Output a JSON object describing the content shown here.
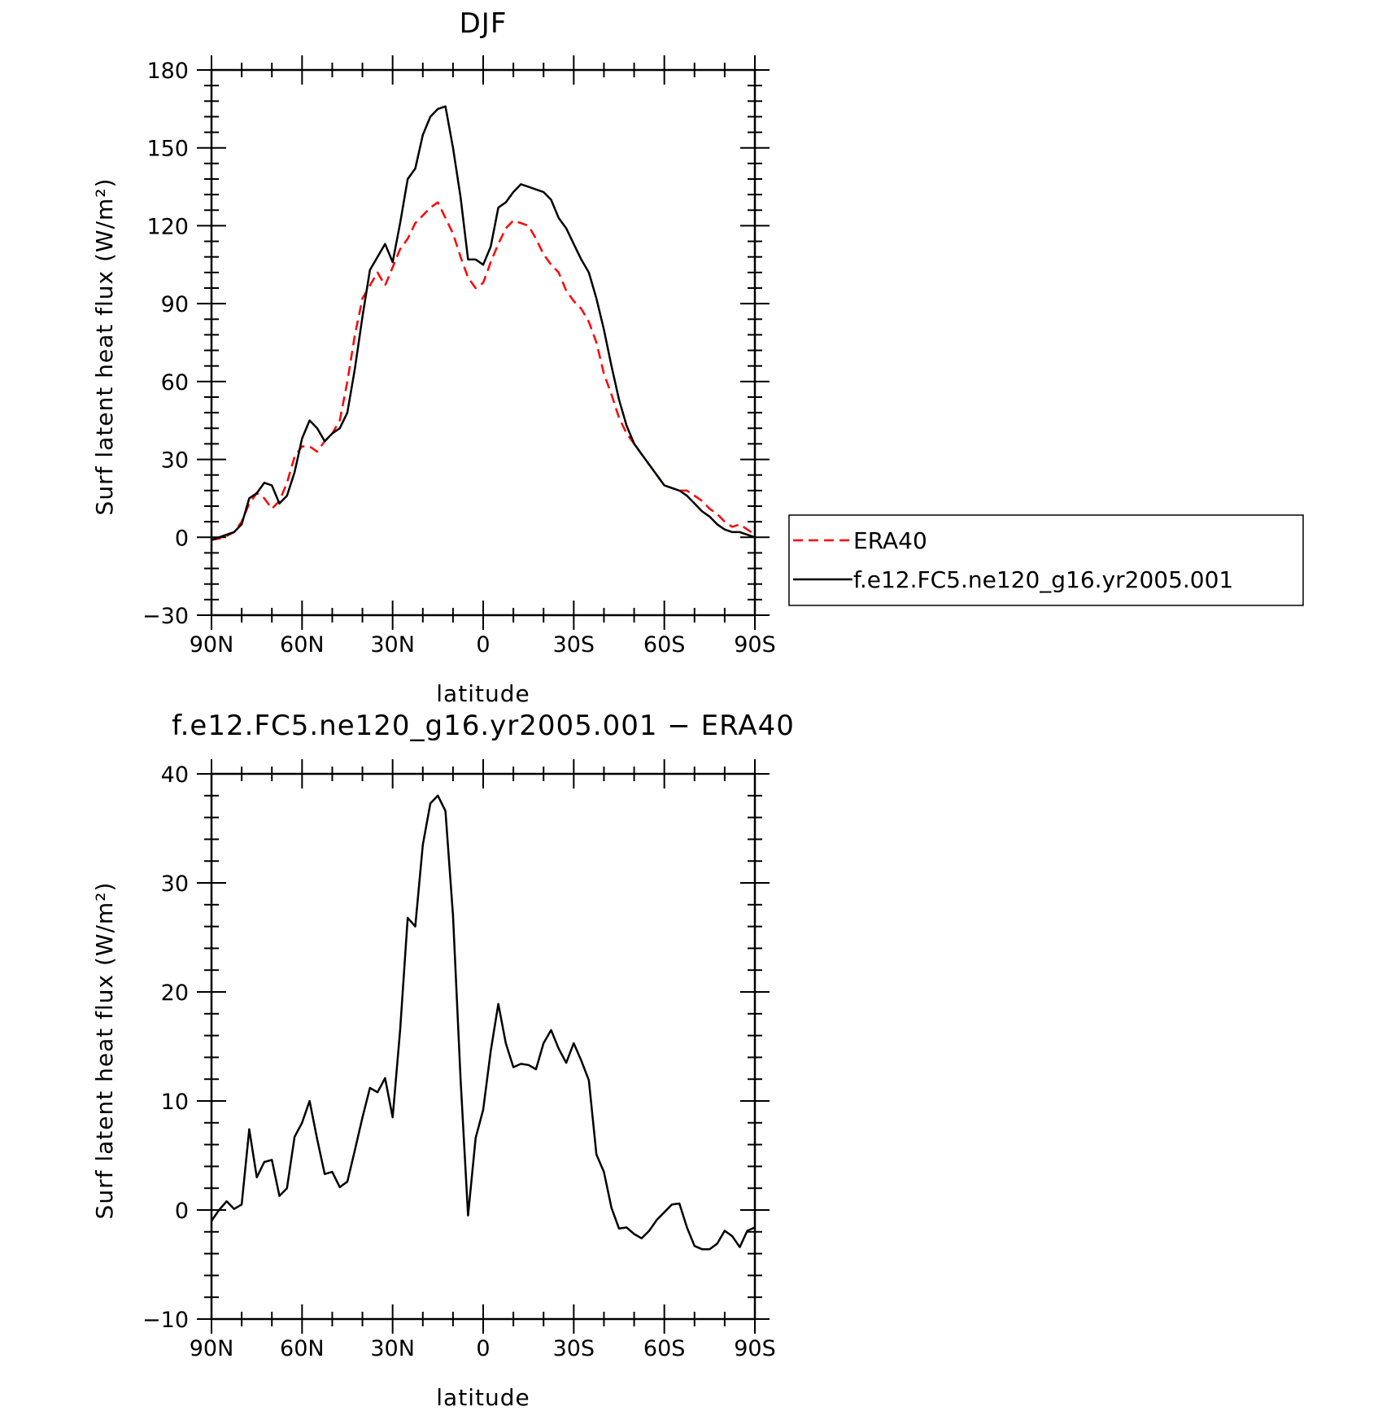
{
  "chart_data": [
    {
      "type": "line",
      "title": "DJF",
      "xlabel": "latitude",
      "ylabel": "Surf latent heat flux (W/m²)",
      "xlim": [
        90,
        -90
      ],
      "ylim": [
        -30,
        180
      ],
      "yticks": [
        -30,
        0,
        30,
        60,
        90,
        120,
        150,
        180
      ],
      "xtick_values": [
        90,
        60,
        30,
        0,
        -30,
        -60,
        -90
      ],
      "xtick_labels": [
        "90N",
        "60N",
        "30N",
        "0",
        "30S",
        "60S",
        "90S"
      ],
      "grid": false,
      "legend_position": "right-middle",
      "x": [
        90,
        87.5,
        85,
        82.5,
        80,
        77.5,
        75,
        72.5,
        70,
        67.5,
        65,
        62.5,
        60,
        57.5,
        55,
        52.5,
        50,
        47.5,
        45,
        42.5,
        40,
        37.5,
        35,
        32.5,
        30,
        27.5,
        25,
        22.5,
        20,
        17.5,
        15,
        12.5,
        10,
        7.5,
        5,
        2.5,
        0,
        -2.5,
        -5,
        -7.5,
        -10,
        -12.5,
        -15,
        -17.5,
        -20,
        -22.5,
        -25,
        -27.5,
        -30,
        -32.5,
        -35,
        -37.5,
        -40,
        -42.5,
        -45,
        -47.5,
        -50,
        -52.5,
        -55,
        -57.5,
        -60,
        -62.5,
        -65,
        -67.5,
        -70,
        -72.5,
        -75,
        -77.5,
        -80,
        -82.5,
        -85,
        -87.5,
        -90
      ],
      "series": [
        {
          "name": "ERA40",
          "color": "#ff0000",
          "dash": true,
          "values": [
            -1,
            -0.5,
            0.5,
            2,
            6,
            13,
            17,
            15,
            11,
            14,
            21,
            31,
            35,
            35,
            33,
            37,
            40,
            45,
            60,
            78,
            92,
            97,
            102,
            97,
            104,
            111,
            115,
            121,
            124,
            127,
            129,
            123,
            117,
            108,
            100,
            96,
            98,
            106,
            113,
            119,
            122,
            121,
            120,
            115,
            109,
            105,
            102,
            95,
            91,
            88,
            83,
            75,
            63,
            55,
            46,
            40,
            36,
            32,
            28,
            24,
            20,
            19,
            18,
            18,
            16,
            14,
            11,
            9,
            6,
            4,
            5,
            3,
            1
          ]
        },
        {
          "name": "f.e12.FC5.ne120_g16.yr2005.001",
          "color": "#000000",
          "dash": false,
          "values": [
            -1,
            0,
            1,
            2,
            5,
            15,
            17,
            21,
            20,
            13,
            16,
            25,
            38,
            45,
            42,
            37,
            40,
            42,
            48,
            65,
            85,
            103,
            108,
            113,
            106,
            121,
            138,
            142,
            155,
            162,
            165,
            166,
            150,
            131,
            107,
            107,
            105,
            112,
            127,
            129,
            133,
            136,
            135,
            134,
            133,
            130,
            123,
            119,
            113,
            107,
            102,
            92,
            80,
            66,
            53,
            43,
            36,
            32,
            28,
            24,
            20,
            19,
            18,
            16,
            13,
            10,
            8,
            5,
            3,
            2,
            2,
            1,
            0
          ]
        }
      ]
    },
    {
      "type": "line",
      "title": "f.e12.FC5.ne120_g16.yr2005.001 − ERA40",
      "xlabel": "latitude",
      "ylabel": "Surf latent heat flux (W/m²)",
      "xlim": [
        90,
        -90
      ],
      "ylim": [
        -10,
        40
      ],
      "yticks": [
        -10,
        0,
        10,
        20,
        30,
        40
      ],
      "xtick_values": [
        90,
        60,
        30,
        0,
        -30,
        -60,
        -90
      ],
      "xtick_labels": [
        "90N",
        "60N",
        "30N",
        "0",
        "30S",
        "60S",
        "90S"
      ],
      "grid": false,
      "x": [
        90,
        87.5,
        85,
        82.5,
        80,
        77.5,
        75,
        72.5,
        70,
        67.5,
        65,
        62.5,
        60,
        57.5,
        55,
        52.5,
        50,
        47.5,
        45,
        42.5,
        40,
        37.5,
        35,
        32.5,
        30,
        27.5,
        25,
        22.5,
        20,
        17.5,
        15,
        12.5,
        10,
        7.5,
        5,
        2.5,
        0,
        -2.5,
        -5,
        -7.5,
        -10,
        -12.5,
        -15,
        -17.5,
        -20,
        -22.5,
        -25,
        -27.5,
        -30,
        -32.5,
        -35,
        -37.5,
        -40,
        -42.5,
        -45,
        -47.5,
        -50,
        -52.5,
        -55,
        -57.5,
        -60,
        -62.5,
        -65,
        -67.5,
        -70,
        -72.5,
        -75,
        -77.5,
        -80,
        -82.5,
        -85,
        -87.5,
        -90
      ],
      "series": [
        {
          "color": "#000000",
          "dash": false,
          "values": [
            -1,
            0,
            0.8,
            0.1,
            0.5,
            7.4,
            3,
            4.4,
            4.6,
            1.3,
            2,
            6.7,
            8,
            10,
            6.5,
            3.3,
            3.5,
            2.1,
            2.6,
            5.5,
            8.5,
            11.2,
            10.8,
            12.1,
            8.5,
            16.5,
            26.8,
            26,
            33.5,
            37.3,
            38,
            36.6,
            27,
            12,
            -0.5,
            6.6,
            9.2,
            14.6,
            18.9,
            15.3,
            13.1,
            13.4,
            13.3,
            12.9,
            15.3,
            16.5,
            14.8,
            13.5,
            15.3,
            13.7,
            11.9,
            5.1,
            3.5,
            0.2,
            -1.7,
            -1.6,
            -2.2,
            -2.6,
            -1.9,
            -0.9,
            -0.2,
            0.5,
            0.6,
            -1.6,
            -3.3,
            -3.6,
            -3.6,
            -3.1,
            -1.9,
            -2.4,
            -3.4,
            -1.9,
            -1.6
          ]
        }
      ]
    }
  ]
}
